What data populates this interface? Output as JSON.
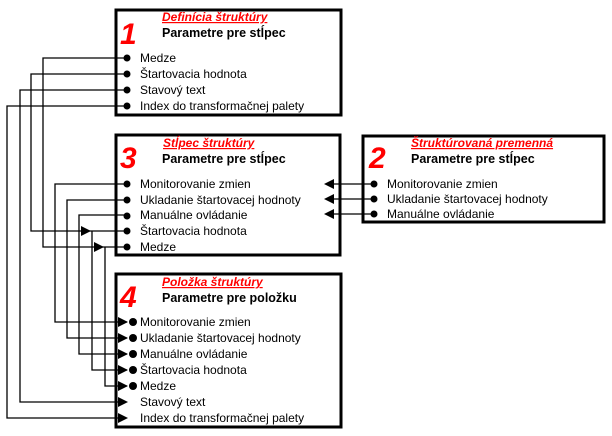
{
  "boxes": {
    "definition": {
      "number": "1",
      "title": "Definícia štruktúry",
      "subtitle": "Parametre pre stĺpec",
      "items": [
        "Medze",
        "Štartovacia hodnota",
        "Stavový text",
        "Index do transformačnej palety"
      ]
    },
    "structured_variable": {
      "number": "2",
      "title": "Štruktúrovaná premenná",
      "subtitle": "Parametre pre stĺpec",
      "items": [
        "Monitorovanie zmien",
        "Ukladanie štartovacej hodnoty",
        "Manuálne ovládanie"
      ]
    },
    "column": {
      "number": "3",
      "title": "Stĺpec štruktúry",
      "subtitle": "Parametre pre stĺpec",
      "items": [
        "Monitorovanie zmien",
        "Ukladanie štartovacej hodnoty",
        "Manuálne ovládanie",
        "Štartovacia hodnota",
        "Medze"
      ]
    },
    "item": {
      "number": "4",
      "title": "Položka štruktúry",
      "subtitle": "Parametre pre položku",
      "items": [
        "Monitorovanie zmien",
        "Ukladanie štartovacej hodnoty",
        "Manuálne ovládanie",
        "Štartovacia hodnota",
        "Medze",
        "Stavový text",
        "Index do transformačnej palety"
      ]
    }
  },
  "colors": {
    "accent": "#ff0000",
    "lines": "#000000"
  }
}
